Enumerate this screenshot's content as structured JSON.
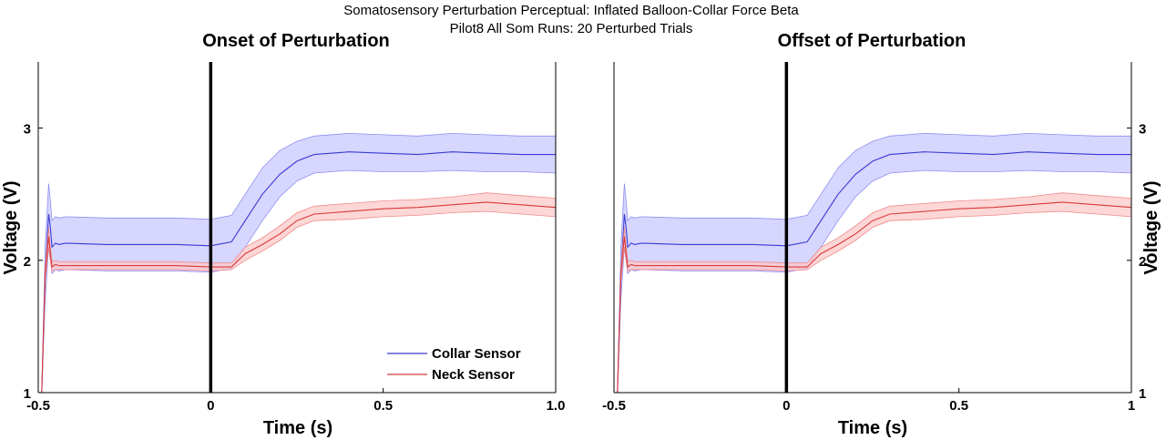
{
  "figure": {
    "suptitle_line1": "Somatosensory Perturbation Perceptual: Inflated Balloon-Collar Force Beta",
    "suptitle_line2": "Pilot8 All Som Runs: 20 Perturbed Trials"
  },
  "colors": {
    "collar_line": "#3a3ad0",
    "collar_band": "#c8c8ff",
    "collar_band_edge": "#8f8ff2",
    "neck_line": "#d83a3a",
    "neck_band": "#fcc8c8",
    "neck_band_edge": "#ef8d8d",
    "event_line": "#000000"
  },
  "chart_data": [
    {
      "type": "line",
      "title": "Onset of Perturbation",
      "xlabel": "Time (s)",
      "ylabel": "Voltage (V)",
      "xlim": [
        -0.5,
        1.0
      ],
      "ylim": [
        1.0,
        3.5
      ],
      "xticks": [
        -0.5,
        0,
        0.5,
        1.0
      ],
      "xtick_labels": [
        "-0.5",
        "0",
        "0.5",
        "1.0"
      ],
      "yticks": [
        1,
        2,
        3
      ],
      "ytick_labels": [
        "1",
        "2",
        "3"
      ],
      "ytick_side": "left",
      "event_line_x": 0,
      "grid": false,
      "legend": {
        "placement": "bottom-right",
        "entries": [
          "Collar Sensor",
          "Neck Sensor"
        ]
      },
      "x": [
        -0.49,
        -0.48,
        -0.47,
        -0.465,
        -0.46,
        -0.45,
        -0.44,
        -0.42,
        -0.3,
        -0.1,
        0.0,
        0.06,
        0.1,
        0.15,
        0.2,
        0.25,
        0.3,
        0.4,
        0.5,
        0.6,
        0.7,
        0.8,
        0.9,
        1.0
      ],
      "series": [
        {
          "name": "Collar Sensor",
          "mean": [
            1.0,
            1.9,
            2.35,
            2.25,
            2.1,
            2.13,
            2.12,
            2.13,
            2.12,
            2.12,
            2.11,
            2.14,
            2.3,
            2.5,
            2.65,
            2.75,
            2.8,
            2.82,
            2.81,
            2.8,
            2.82,
            2.81,
            2.8,
            2.8
          ],
          "lower": [
            1.0,
            1.7,
            2.1,
            2.0,
            1.9,
            1.93,
            1.92,
            1.93,
            1.92,
            1.92,
            1.91,
            1.94,
            2.1,
            2.3,
            2.48,
            2.6,
            2.66,
            2.68,
            2.67,
            2.67,
            2.68,
            2.67,
            2.67,
            2.66
          ],
          "upper": [
            1.0,
            2.1,
            2.58,
            2.45,
            2.3,
            2.33,
            2.32,
            2.33,
            2.32,
            2.32,
            2.31,
            2.34,
            2.5,
            2.7,
            2.83,
            2.9,
            2.94,
            2.96,
            2.95,
            2.94,
            2.96,
            2.95,
            2.94,
            2.94
          ]
        },
        {
          "name": "Neck Sensor",
          "mean": [
            1.0,
            1.9,
            2.18,
            2.05,
            1.95,
            1.97,
            1.96,
            1.96,
            1.96,
            1.96,
            1.95,
            1.95,
            2.05,
            2.12,
            2.2,
            2.3,
            2.35,
            2.37,
            2.39,
            2.4,
            2.42,
            2.44,
            2.42,
            2.4
          ],
          "lower": [
            1.0,
            1.85,
            2.1,
            2.0,
            1.92,
            1.93,
            1.93,
            1.93,
            1.93,
            1.93,
            1.92,
            1.93,
            2.0,
            2.07,
            2.15,
            2.25,
            2.3,
            2.31,
            2.33,
            2.34,
            2.36,
            2.37,
            2.35,
            2.33
          ],
          "upper": [
            1.0,
            1.95,
            2.25,
            2.1,
            1.99,
            2.0,
            1.99,
            1.99,
            1.99,
            1.99,
            1.98,
            1.98,
            2.1,
            2.17,
            2.26,
            2.36,
            2.41,
            2.43,
            2.45,
            2.46,
            2.48,
            2.51,
            2.49,
            2.47
          ]
        }
      ]
    },
    {
      "type": "line",
      "title": "Offset of Perturbation",
      "xlabel": "Time (s)",
      "ylabel": "Voltage (V)",
      "xlim": [
        -0.5,
        1.0
      ],
      "ylim": [
        1.0,
        3.5
      ],
      "xticks": [
        -0.5,
        0,
        0.5,
        1.0
      ],
      "xtick_labels": [
        "-0.5",
        "0",
        "0.5",
        "1"
      ],
      "yticks": [
        1,
        2,
        3
      ],
      "ytick_labels": [
        "1",
        "2",
        "3"
      ],
      "ytick_side": "right",
      "event_line_x": 0,
      "grid": false,
      "x": [
        -0.49,
        -0.48,
        -0.47,
        -0.465,
        -0.46,
        -0.45,
        -0.44,
        -0.42,
        -0.3,
        -0.1,
        0.0,
        0.06,
        0.1,
        0.15,
        0.2,
        0.25,
        0.3,
        0.4,
        0.5,
        0.6,
        0.7,
        0.8,
        0.9,
        1.0
      ],
      "series": [
        {
          "name": "Collar Sensor",
          "mean": [
            1.0,
            1.9,
            2.35,
            2.25,
            2.1,
            2.13,
            2.12,
            2.13,
            2.12,
            2.12,
            2.11,
            2.14,
            2.3,
            2.5,
            2.65,
            2.75,
            2.8,
            2.82,
            2.81,
            2.8,
            2.82,
            2.81,
            2.8,
            2.8
          ],
          "lower": [
            1.0,
            1.7,
            2.1,
            2.0,
            1.9,
            1.93,
            1.92,
            1.93,
            1.92,
            1.92,
            1.91,
            1.94,
            2.1,
            2.3,
            2.48,
            2.6,
            2.66,
            2.68,
            2.67,
            2.67,
            2.68,
            2.67,
            2.67,
            2.66
          ],
          "upper": [
            1.0,
            2.1,
            2.58,
            2.45,
            2.3,
            2.33,
            2.32,
            2.33,
            2.32,
            2.32,
            2.31,
            2.34,
            2.5,
            2.7,
            2.83,
            2.9,
            2.94,
            2.96,
            2.95,
            2.94,
            2.96,
            2.95,
            2.94,
            2.94
          ]
        },
        {
          "name": "Neck Sensor",
          "mean": [
            1.0,
            1.9,
            2.18,
            2.05,
            1.95,
            1.97,
            1.96,
            1.96,
            1.96,
            1.96,
            1.95,
            1.95,
            2.05,
            2.12,
            2.2,
            2.3,
            2.35,
            2.37,
            2.39,
            2.4,
            2.42,
            2.44,
            2.42,
            2.4
          ],
          "lower": [
            1.0,
            1.85,
            2.1,
            2.0,
            1.92,
            1.93,
            1.93,
            1.93,
            1.93,
            1.93,
            1.92,
            1.93,
            2.0,
            2.07,
            2.15,
            2.25,
            2.3,
            2.31,
            2.33,
            2.34,
            2.36,
            2.37,
            2.35,
            2.33
          ],
          "upper": [
            1.0,
            1.95,
            2.25,
            2.1,
            1.99,
            2.0,
            1.99,
            1.99,
            1.99,
            1.99,
            1.98,
            1.98,
            2.1,
            2.17,
            2.26,
            2.36,
            2.41,
            2.43,
            2.45,
            2.46,
            2.48,
            2.51,
            2.49,
            2.47
          ]
        }
      ]
    }
  ]
}
